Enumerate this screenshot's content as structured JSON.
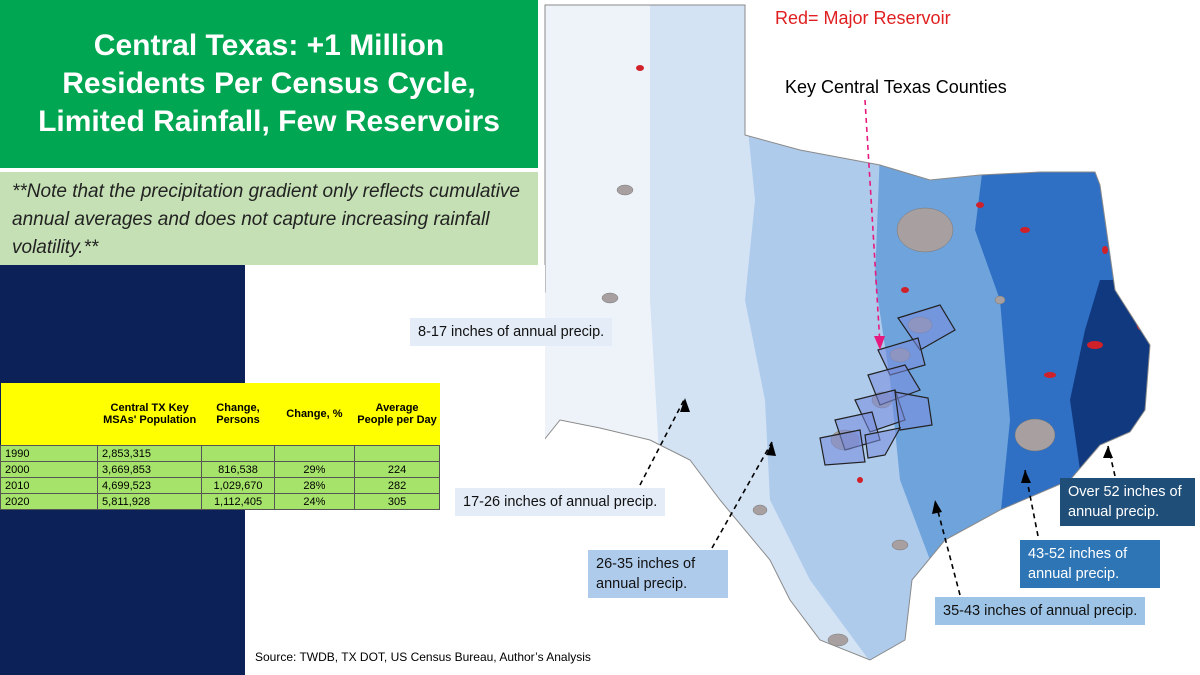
{
  "header": {
    "title": "Central Texas: +1 Million Residents Per Census Cycle, Limited Rainfall, Few Reservoirs",
    "note": "**Note that the precipitation gradient only reflects cumulative annual averages and does not capture increasing rainfall volatility.**"
  },
  "table": {
    "header": [
      "Central TX Key MSAs' Population",
      "Change, Persons",
      "Change, %",
      "Average People per Day"
    ],
    "rows": [
      [
        "1990",
        "2,853,315"
      ],
      [
        "2000",
        "3,669,853",
        "816,538",
        "29%",
        "224"
      ],
      [
        "2010",
        "4,699,523",
        "1,029,670",
        "28%",
        "282"
      ],
      [
        "2020",
        "5,811,928",
        "1,112,405",
        "24%",
        "305"
      ]
    ]
  },
  "map": {
    "legend": "Red= Major Reservoir",
    "counties_label": "Key Central Texas Counties",
    "zones": [
      "8-17 inches of annual precip.",
      "17-26 inches of annual precip.",
      "26-35 inches of annual precip.",
      "35-43 inches of annual precip.",
      "43-52 inches of annual precip.",
      "Over 52 inches of annual precip."
    ]
  },
  "source": "Source: TWDB, TX DOT, US Census Bureau, Author’s Analysis"
}
